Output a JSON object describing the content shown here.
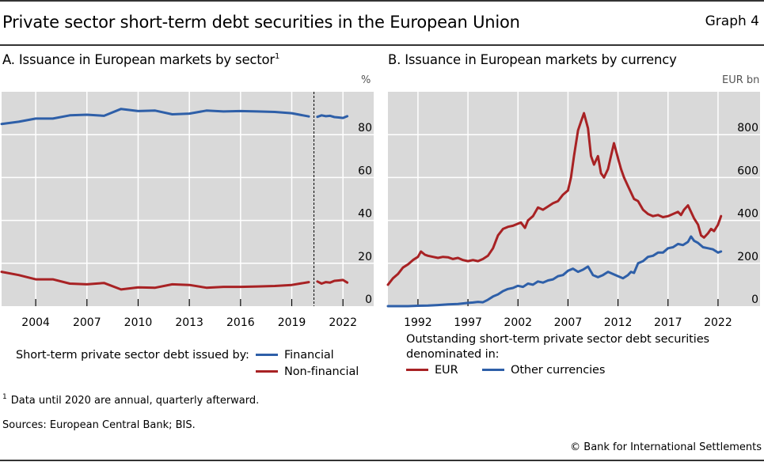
{
  "header": {
    "title": "Private sector short-term debt securities in the European Union",
    "graph_number": "Graph 4"
  },
  "panels": {
    "a": {
      "title": "A. Issuance in European markets by sector",
      "title_footnote_ref": "1",
      "unit": "%",
      "legend_caption": "Short-term private sector debt issued by:",
      "legend": [
        {
          "label": "Financial",
          "color": "#2e5fa8"
        },
        {
          "label": "Non-financial",
          "color": "#a82224"
        }
      ]
    },
    "b": {
      "title": "B. Issuance in European markets by currency",
      "unit": "EUR bn",
      "legend_caption_line1": "Outstanding short-term private sector debt securities",
      "legend_caption_line2": "denominated in:",
      "legend": [
        {
          "label": "EUR",
          "color": "#a82224"
        },
        {
          "label": "Other currencies",
          "color": "#2e5fa8"
        }
      ]
    }
  },
  "footnote": {
    "ref": "1",
    "text": "Data until 2020 are annual, quarterly afterward."
  },
  "sources": "Sources: European Central Bank; BIS.",
  "copyright": "© Bank for International Settlements",
  "chart_data": [
    {
      "type": "line",
      "title": "A. Issuance in European markets by sector",
      "ylabel": "%",
      "xlim": [
        2002.0,
        2023.8
      ],
      "ylim": [
        0,
        100
      ],
      "x_ticks": [
        2004,
        2007,
        2010,
        2013,
        2016,
        2019,
        2022
      ],
      "y_ticks": [
        0,
        20,
        40,
        60,
        80
      ],
      "grid": true,
      "y_axis_side": "right",
      "vertical_marker": {
        "x": 2020.3,
        "style": "dashed",
        "meaning": "annual data before, quarterly after"
      },
      "legend_position": "bottom",
      "series": [
        {
          "name": "Financial",
          "color": "#2e5fa8",
          "segments": [
            {
              "x": [
                2002.0,
                2003.0,
                2004.0,
                2005.0,
                2006.0,
                2007.0,
                2008.0,
                2009.0,
                2010.0,
                2011.0,
                2012.0,
                2013.0,
                2014.0,
                2015.0,
                2016.0,
                2017.0,
                2018.0,
                2019.0,
                2020.0
              ],
              "y": [
                85.0,
                86.0,
                87.5,
                87.5,
                89.0,
                89.3,
                88.8,
                92.0,
                91.0,
                91.2,
                89.5,
                89.8,
                91.2,
                90.8,
                91.0,
                90.8,
                90.6,
                90.0,
                88.5
              ]
            },
            {
              "x": [
                2020.5,
                2020.75,
                2021.0,
                2021.25,
                2021.5,
                2021.75,
                2022.0,
                2022.25
              ],
              "y": [
                88.3,
                89.0,
                88.6,
                88.8,
                88.2,
                88.0,
                87.8,
                88.6
              ]
            }
          ]
        },
        {
          "name": "Non-financial",
          "color": "#a82224",
          "segments": [
            {
              "x": [
                2002.0,
                2003.0,
                2004.0,
                2005.0,
                2006.0,
                2007.0,
                2008.0,
                2009.0,
                2010.0,
                2011.0,
                2012.0,
                2013.0,
                2014.0,
                2015.0,
                2016.0,
                2017.0,
                2018.0,
                2019.0,
                2020.0
              ],
              "y": [
                16.0,
                14.5,
                12.5,
                12.5,
                10.5,
                10.2,
                10.8,
                7.8,
                8.8,
                8.6,
                10.2,
                9.9,
                8.6,
                9.0,
                9.0,
                9.2,
                9.4,
                9.9,
                11.2
              ]
            },
            {
              "x": [
                2020.5,
                2020.75,
                2021.0,
                2021.25,
                2021.5,
                2021.75,
                2022.0,
                2022.25
              ],
              "y": [
                11.5,
                10.5,
                11.2,
                11.0,
                11.8,
                12.0,
                12.2,
                11.0
              ]
            }
          ]
        }
      ]
    },
    {
      "type": "line",
      "title": "B. Issuance in European markets by currency",
      "ylabel": "EUR bn",
      "xlim": [
        1989.0,
        2026.2
      ],
      "ylim": [
        0,
        1000
      ],
      "x_ticks": [
        1992,
        1997,
        2002,
        2007,
        2012,
        2017,
        2022
      ],
      "y_ticks": [
        0,
        200,
        400,
        600,
        800
      ],
      "grid": true,
      "y_axis_side": "right",
      "legend_position": "bottom",
      "series": [
        {
          "name": "EUR",
          "color": "#a82224",
          "x": [
            1989.0,
            1989.5,
            1990.0,
            1990.5,
            1991.0,
            1991.5,
            1992.0,
            1992.3,
            1992.7,
            1993.0,
            1993.5,
            1994.0,
            1994.5,
            1995.0,
            1995.5,
            1996.0,
            1996.5,
            1997.0,
            1997.5,
            1998.0,
            1998.5,
            1999.0,
            1999.5,
            2000.0,
            2000.5,
            2001.0,
            2001.5,
            2002.0,
            2002.3,
            2002.7,
            2003.0,
            2003.5,
            2004.0,
            2004.5,
            2005.0,
            2005.5,
            2006.0,
            2006.5,
            2007.0,
            2007.3,
            2007.6,
            2008.0,
            2008.3,
            2008.6,
            2009.0,
            2009.3,
            2009.6,
            2010.0,
            2010.3,
            2010.6,
            2011.0,
            2011.3,
            2011.6,
            2012.0,
            2012.3,
            2012.6,
            2013.0,
            2013.3,
            2013.6,
            2014.0,
            2014.5,
            2015.0,
            2015.5,
            2016.0,
            2016.5,
            2017.0,
            2017.5,
            2018.0,
            2018.3,
            2018.6,
            2019.0,
            2019.3,
            2019.6,
            2020.0,
            2020.3,
            2020.6,
            2021.0,
            2021.3,
            2021.6,
            2022.0,
            2022.3
          ],
          "y": [
            100,
            130,
            150,
            180,
            195,
            215,
            230,
            255,
            240,
            235,
            230,
            225,
            230,
            228,
            220,
            225,
            215,
            210,
            215,
            210,
            220,
            235,
            270,
            330,
            360,
            370,
            375,
            385,
            390,
            365,
            400,
            420,
            460,
            450,
            465,
            480,
            490,
            520,
            540,
            600,
            700,
            820,
            860,
            900,
            830,
            700,
            660,
            700,
            620,
            600,
            640,
            700,
            760,
            690,
            640,
            600,
            560,
            530,
            500,
            490,
            450,
            430,
            420,
            425,
            415,
            420,
            430,
            440,
            425,
            450,
            470,
            440,
            410,
            380,
            330,
            320,
            340,
            360,
            350,
            380,
            420
          ]
        },
        {
          "name": "Other currencies",
          "color": "#2e5fa8",
          "x": [
            1989.0,
            1990.0,
            1991.0,
            1992.0,
            1993.0,
            1994.0,
            1995.0,
            1996.0,
            1997.0,
            1997.5,
            1998.0,
            1998.5,
            1999.0,
            1999.5,
            2000.0,
            2000.5,
            2001.0,
            2001.5,
            2002.0,
            2002.5,
            2003.0,
            2003.5,
            2004.0,
            2004.5,
            2005.0,
            2005.5,
            2006.0,
            2006.5,
            2007.0,
            2007.5,
            2008.0,
            2008.5,
            2009.0,
            2009.5,
            2010.0,
            2010.5,
            2011.0,
            2011.5,
            2012.0,
            2012.5,
            2013.0,
            2013.3,
            2013.6,
            2014.0,
            2014.5,
            2015.0,
            2015.5,
            2016.0,
            2016.5,
            2017.0,
            2017.5,
            2018.0,
            2018.5,
            2019.0,
            2019.3,
            2019.6,
            2020.0,
            2020.5,
            2021.0,
            2021.5,
            2022.0,
            2022.3
          ],
          "y": [
            0,
            0,
            0,
            2,
            3,
            5,
            8,
            10,
            15,
            17,
            20,
            18,
            30,
            45,
            55,
            70,
            80,
            85,
            95,
            90,
            105,
            100,
            115,
            110,
            120,
            125,
            140,
            145,
            165,
            175,
            160,
            170,
            185,
            145,
            135,
            145,
            160,
            150,
            140,
            130,
            145,
            160,
            155,
            200,
            210,
            230,
            235,
            250,
            250,
            270,
            275,
            290,
            285,
            300,
            325,
            305,
            295,
            275,
            270,
            265,
            250,
            255
          ]
        }
      ]
    }
  ]
}
